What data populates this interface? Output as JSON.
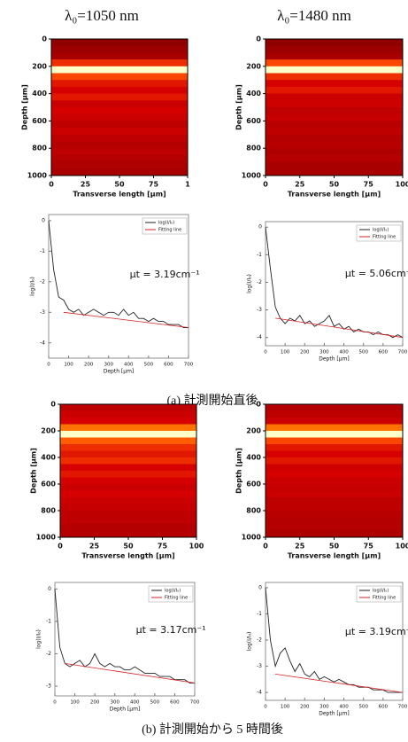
{
  "headers": [
    "λ₀=1050 nm",
    "λ₀=1480 nm"
  ],
  "captions": [
    "(a) 計測開始直後",
    "(b) 計測開始から 5 時間後"
  ],
  "chart_data": [
    {
      "type": "heatmap",
      "xlabel": "Transverse length [μm]",
      "ylabel": "Depth [μm]",
      "xlim": [
        0,
        100
      ],
      "ylim": [
        1000,
        0
      ],
      "xticks": [
        0,
        25,
        50,
        75,
        {
          "value": 100,
          "label": "1"
        }
      ],
      "yticks": [
        0,
        200,
        400,
        600,
        800,
        1000
      ],
      "y": [
        25,
        75,
        125,
        175,
        225,
        275,
        325,
        375,
        425,
        475,
        525,
        575,
        625,
        675,
        725,
        775,
        825,
        875,
        925,
        975
      ],
      "values": [
        0.15,
        0.2,
        0.25,
        0.55,
        1.0,
        0.6,
        0.5,
        0.45,
        0.5,
        0.4,
        0.45,
        0.4,
        0.35,
        0.4,
        0.35,
        0.3,
        0.35,
        0.3,
        0.28,
        0.25
      ]
    },
    {
      "type": "heatmap",
      "xlabel": "Transverse length [μm]",
      "ylabel": "Depth [μm]",
      "xlim": [
        0,
        100
      ],
      "ylim": [
        1000,
        0
      ],
      "xticks": [
        0,
        25,
        50,
        75,
        100
      ],
      "yticks": [
        0,
        200,
        400,
        600,
        800,
        1000
      ],
      "y": [
        25,
        75,
        125,
        175,
        225,
        275,
        325,
        375,
        425,
        475,
        525,
        575,
        625,
        675,
        725,
        775,
        825,
        875,
        925,
        975
      ],
      "values": [
        0.15,
        0.2,
        0.25,
        0.6,
        1.0,
        0.55,
        0.45,
        0.5,
        0.4,
        0.42,
        0.35,
        0.38,
        0.32,
        0.35,
        0.3,
        0.32,
        0.28,
        0.3,
        0.25,
        0.25
      ]
    },
    {
      "type": "line",
      "xlabel": "Depth [μm]",
      "ylabel": "log(I/I₀)",
      "xlim": [
        0,
        700
      ],
      "ylim": [
        -4.5,
        0.2
      ],
      "xticks": [
        0,
        100,
        200,
        300,
        400,
        500,
        600,
        700
      ],
      "yticks": [
        0,
        -1,
        -2,
        -3,
        -4
      ],
      "annotation": "μt = 3.19cm⁻¹",
      "x": [
        0,
        25,
        50,
        75,
        100,
        125,
        150,
        175,
        200,
        225,
        250,
        275,
        300,
        325,
        350,
        375,
        400,
        425,
        450,
        475,
        500,
        525,
        550,
        575,
        600,
        625,
        650,
        675,
        700
      ],
      "series": [
        {
          "name": "log(I/I₀)",
          "color": "#222222",
          "values": [
            0,
            -1.6,
            -2.5,
            -2.6,
            -2.9,
            -3.0,
            -2.9,
            -3.1,
            -3.0,
            -2.9,
            -3.0,
            -3.1,
            -3.0,
            -3.0,
            -3.1,
            -2.9,
            -3.1,
            -3.0,
            -3.2,
            -3.2,
            -3.3,
            -3.2,
            -3.3,
            -3.3,
            -3.4,
            -3.4,
            -3.4,
            -3.5,
            -3.5
          ]
        },
        {
          "name": "Fitting line",
          "color": "#d62020",
          "x": [
            75,
            700
          ],
          "values": [
            -3.0,
            -3.5
          ]
        }
      ]
    },
    {
      "type": "line",
      "xlabel": "Depth [μm]",
      "ylabel": "log(I/I₀)",
      "xlim": [
        0,
        700
      ],
      "ylim": [
        -4.3,
        0.2
      ],
      "xticks": [
        0,
        100,
        200,
        300,
        400,
        500,
        600,
        700
      ],
      "yticks": [
        0,
        -1,
        -2,
        -3,
        -4
      ],
      "annotation": "μt = 5.06cm⁻¹",
      "x": [
        0,
        25,
        50,
        75,
        100,
        125,
        150,
        175,
        200,
        225,
        250,
        275,
        300,
        325,
        350,
        375,
        400,
        425,
        450,
        475,
        500,
        525,
        550,
        575,
        600,
        625,
        650,
        675,
        700
      ],
      "series": [
        {
          "name": "log(I/I₀)",
          "color": "#222222",
          "values": [
            0,
            -1.5,
            -2.9,
            -3.3,
            -3.5,
            -3.3,
            -3.4,
            -3.2,
            -3.5,
            -3.4,
            -3.6,
            -3.5,
            -3.4,
            -3.2,
            -3.6,
            -3.5,
            -3.7,
            -3.6,
            -3.8,
            -3.7,
            -3.8,
            -3.8,
            -3.9,
            -3.8,
            -3.9,
            -3.9,
            -4.0,
            -3.9,
            -4.0
          ]
        },
        {
          "name": "Fitting line",
          "color": "#d62020",
          "x": [
            50,
            700
          ],
          "values": [
            -3.3,
            -4.0
          ]
        }
      ]
    },
    {
      "type": "heatmap",
      "xlabel": "Transverse length [μm]",
      "ylabel": "Depth [μm]",
      "xlim": [
        0,
        100
      ],
      "ylim": [
        1000,
        0
      ],
      "xticks": [
        0,
        25,
        50,
        75,
        100
      ],
      "yticks": [
        0,
        200,
        400,
        600,
        800,
        1000
      ],
      "y": [
        25,
        75,
        125,
        175,
        225,
        275,
        325,
        375,
        425,
        475,
        525,
        575,
        625,
        675,
        725,
        775,
        825,
        875,
        925,
        975
      ],
      "values": [
        0.35,
        0.4,
        0.45,
        0.7,
        1.0,
        0.65,
        0.55,
        0.5,
        0.55,
        0.45,
        0.5,
        0.45,
        0.4,
        0.45,
        0.4,
        0.38,
        0.35,
        0.35,
        0.3,
        0.3
      ]
    },
    {
      "type": "heatmap",
      "xlabel": "Transverse length [μm]",
      "ylabel": "Depth [μm]",
      "xlim": [
        0,
        100
      ],
      "ylim": [
        1000,
        0
      ],
      "xticks": [
        0,
        25,
        50,
        75,
        100
      ],
      "yticks": [
        0,
        200,
        400,
        600,
        800,
        1000
      ],
      "y": [
        25,
        75,
        125,
        175,
        225,
        275,
        325,
        375,
        425,
        475,
        525,
        575,
        625,
        675,
        725,
        775,
        825,
        875,
        925,
        975
      ],
      "values": [
        0.3,
        0.35,
        0.4,
        0.7,
        1.0,
        0.6,
        0.5,
        0.45,
        0.5,
        0.42,
        0.45,
        0.4,
        0.38,
        0.4,
        0.35,
        0.35,
        0.32,
        0.3,
        0.3,
        0.28
      ]
    },
    {
      "type": "line",
      "xlabel": "Depth [μm]",
      "ylabel": "log(I/I₀)",
      "xlim": [
        0,
        700
      ],
      "ylim": [
        -3.3,
        0.2
      ],
      "xticks": [
        0,
        100,
        200,
        300,
        400,
        500,
        600,
        700
      ],
      "yticks": [
        0,
        -1,
        -2,
        -3
      ],
      "annotation": "μt = 3.17cm⁻¹",
      "x": [
        0,
        25,
        50,
        75,
        100,
        125,
        150,
        175,
        200,
        225,
        250,
        275,
        300,
        325,
        350,
        375,
        400,
        425,
        450,
        475,
        500,
        525,
        550,
        575,
        600,
        625,
        650,
        675,
        700
      ],
      "series": [
        {
          "name": "log(I/I₀)",
          "color": "#222222",
          "values": [
            0,
            -1.8,
            -2.3,
            -2.4,
            -2.3,
            -2.2,
            -2.4,
            -2.3,
            -2.0,
            -2.3,
            -2.4,
            -2.3,
            -2.4,
            -2.4,
            -2.5,
            -2.5,
            -2.4,
            -2.5,
            -2.6,
            -2.6,
            -2.6,
            -2.7,
            -2.7,
            -2.7,
            -2.8,
            -2.8,
            -2.8,
            -2.9,
            -2.9
          ]
        },
        {
          "name": "Fitting line",
          "color": "#d62020",
          "x": [
            50,
            700
          ],
          "values": [
            -2.3,
            -2.9
          ]
        }
      ]
    },
    {
      "type": "line",
      "xlabel": "Depth [μm]",
      "ylabel": "log(I/I₀)",
      "xlim": [
        0,
        700
      ],
      "ylim": [
        -4.3,
        0.2
      ],
      "xticks": [
        0,
        100,
        200,
        300,
        400,
        500,
        600,
        700
      ],
      "yticks": [
        0,
        -1,
        -2,
        -3,
        -4
      ],
      "annotation": "μt = 3.19cm⁻¹",
      "x": [
        0,
        25,
        50,
        75,
        100,
        125,
        150,
        175,
        200,
        225,
        250,
        275,
        300,
        325,
        350,
        375,
        400,
        425,
        450,
        475,
        500,
        525,
        550,
        575,
        600,
        625,
        650,
        675,
        700
      ],
      "series": [
        {
          "name": "log(I/I₀)",
          "color": "#222222",
          "values": [
            0,
            -2.0,
            -3.0,
            -2.5,
            -2.3,
            -2.8,
            -3.2,
            -2.9,
            -3.3,
            -3.4,
            -3.2,
            -3.5,
            -3.4,
            -3.5,
            -3.6,
            -3.5,
            -3.6,
            -3.7,
            -3.7,
            -3.8,
            -3.8,
            -3.8,
            -3.9,
            -3.9,
            -3.9,
            -4.0,
            -4.0,
            -4.0,
            -4.0
          ]
        },
        {
          "name": "Fitting line",
          "color": "#d62020",
          "x": [
            50,
            700
          ],
          "values": [
            -3.3,
            -4.0
          ]
        }
      ]
    }
  ]
}
